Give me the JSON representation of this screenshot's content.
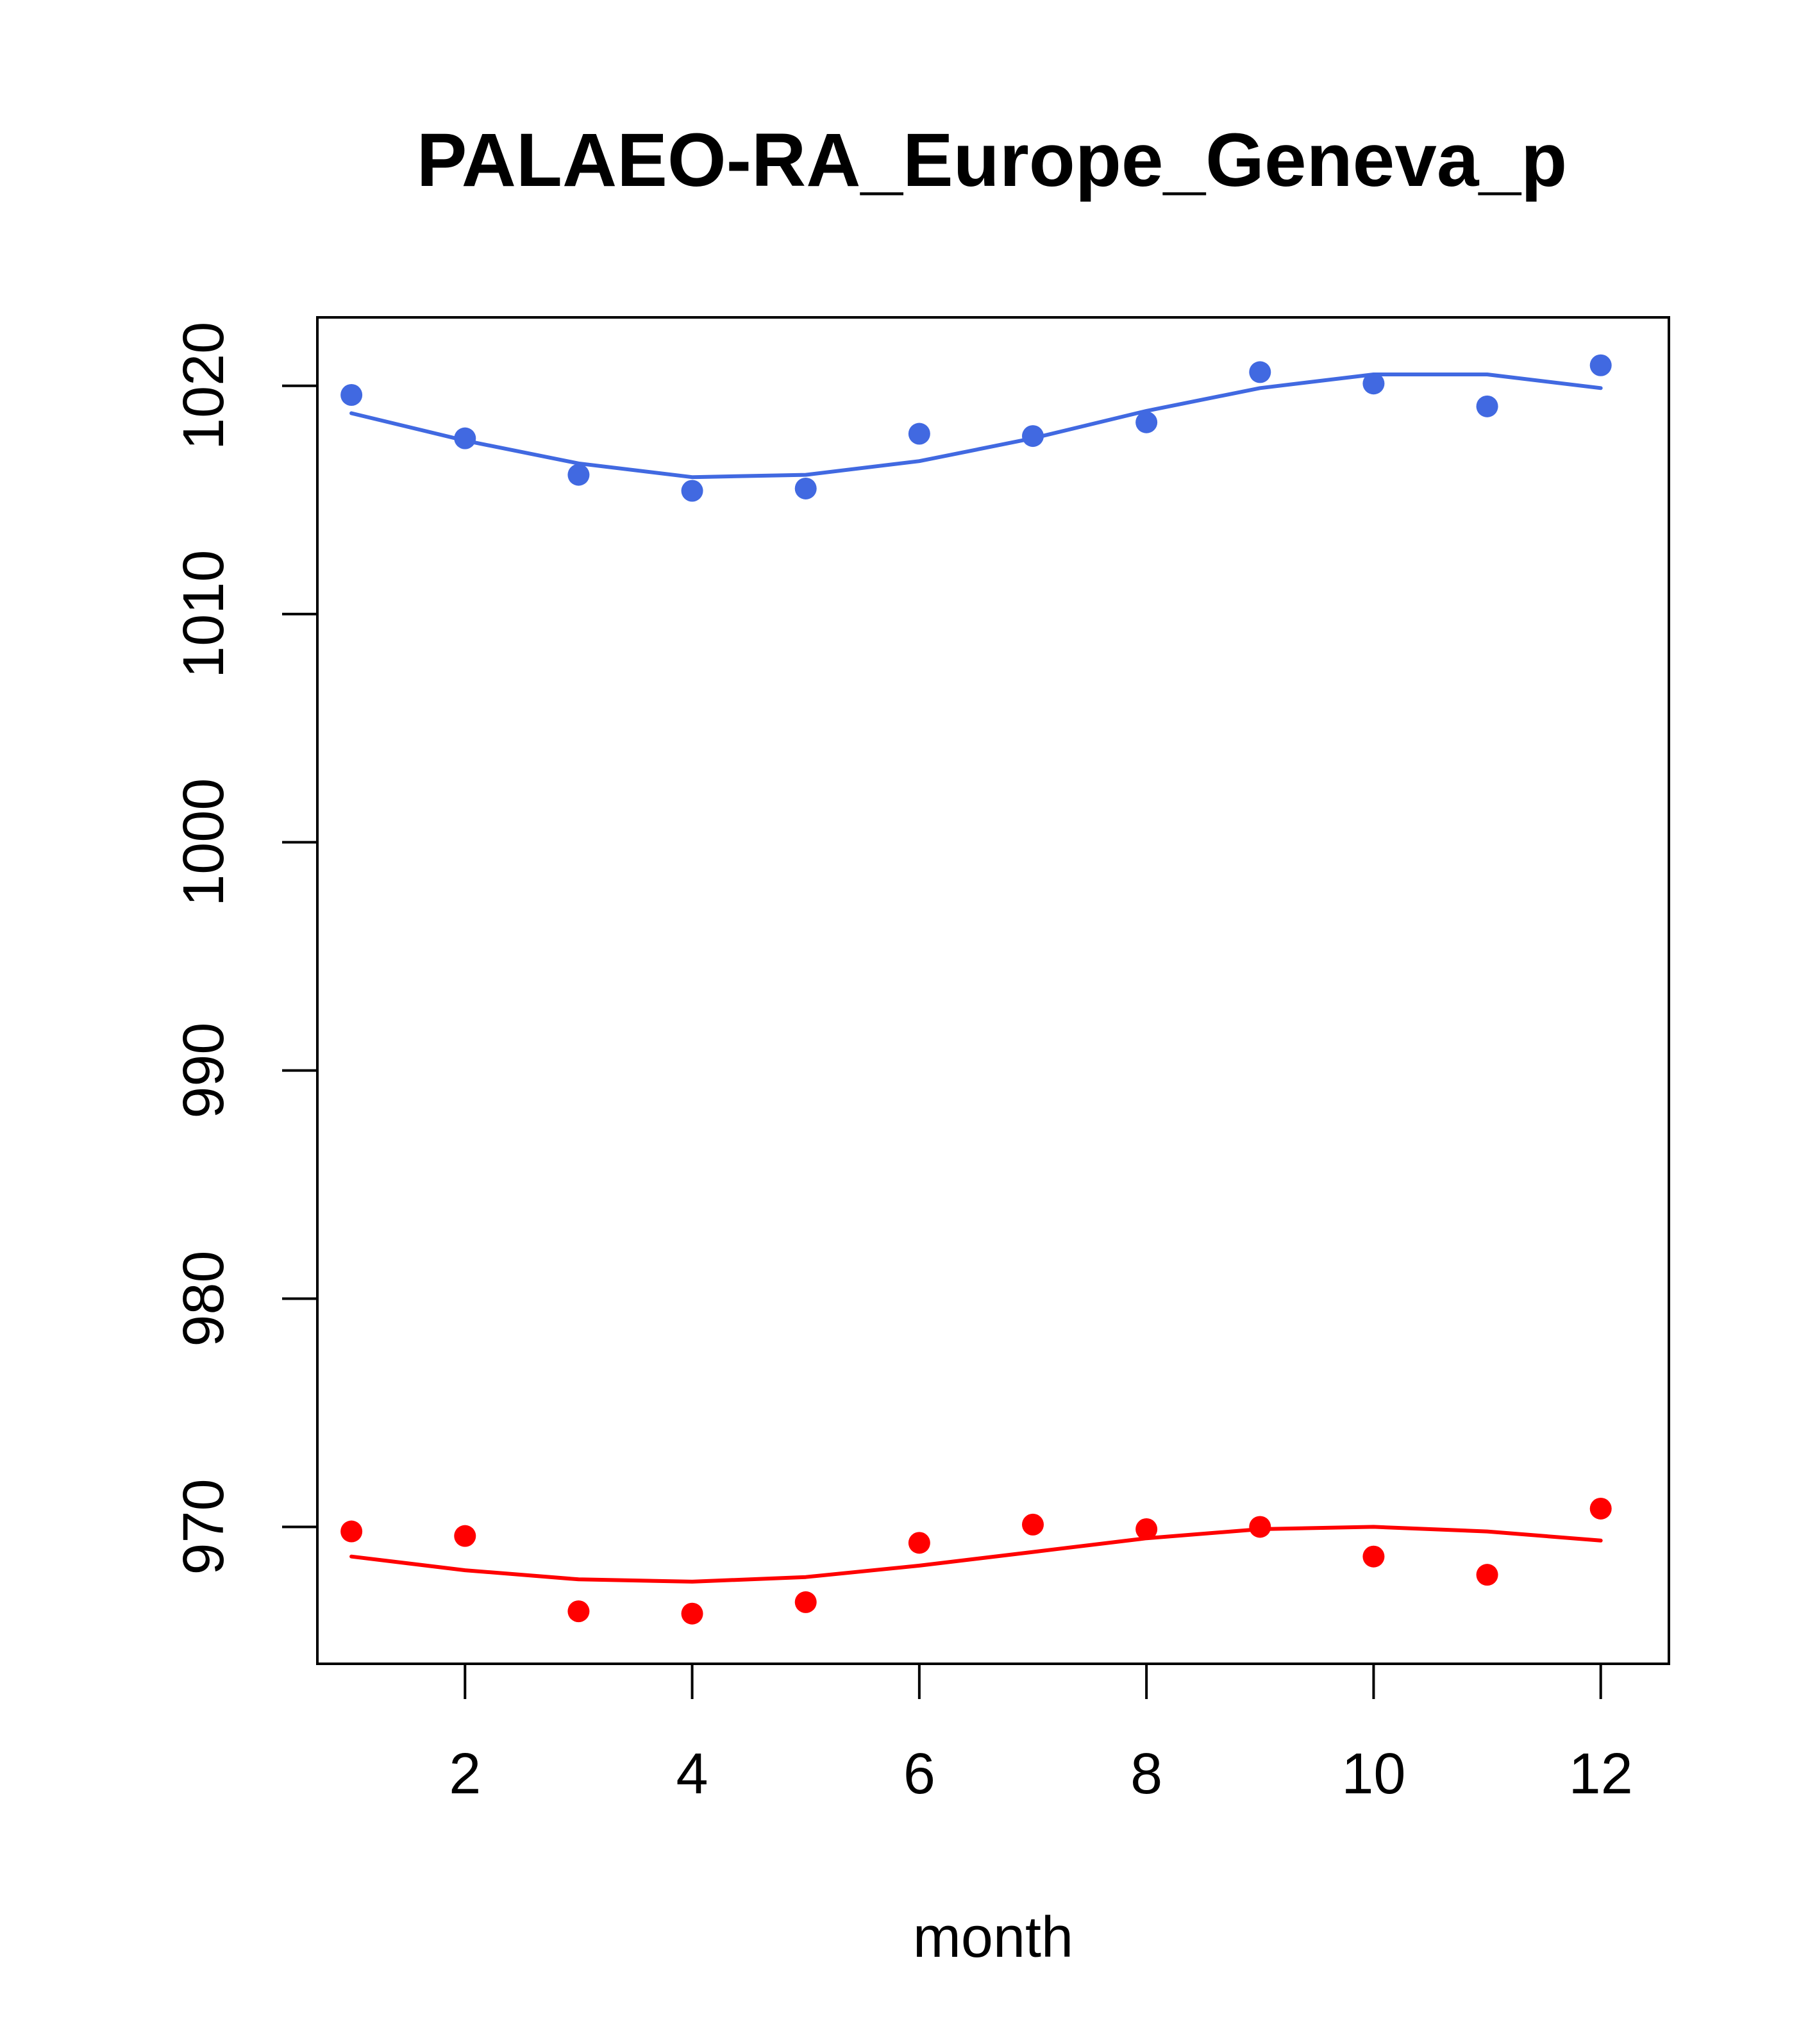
{
  "chart_data": {
    "type": "scatter",
    "title": "PALAEO-RA_Europe_Geneva_p",
    "xlabel": "month",
    "ylabel": "",
    "xlim": [
      0.7,
      12.6
    ],
    "ylim": [
      964,
      1023
    ],
    "x_ticks": [
      2,
      4,
      6,
      8,
      10,
      12
    ],
    "y_ticks": [
      970,
      980,
      990,
      1000,
      1010,
      1020
    ],
    "grid": false,
    "legend": "none",
    "x": [
      1,
      2,
      3,
      4,
      5,
      6,
      7,
      8,
      9,
      10,
      11,
      12
    ],
    "series": [
      {
        "color": "#4169E1",
        "points": [
          1019.6,
          1017.7,
          1016.1,
          1015.4,
          1015.5,
          1017.9,
          1017.8,
          1018.4,
          1020.6,
          1020.1,
          1019.1,
          1020.9
        ],
        "smooth": [
          1018.8,
          1017.6,
          1016.6,
          1016.0,
          1016.1,
          1016.7,
          1017.7,
          1018.9,
          1019.9,
          1020.5,
          1020.5,
          1019.9
        ]
      },
      {
        "color": "#FF0000",
        "points": [
          969.8,
          969.6,
          966.3,
          966.2,
          966.7,
          969.3,
          970.1,
          969.9,
          970.0,
          968.7,
          967.9,
          970.8
        ],
        "smooth": [
          968.7,
          968.1,
          967.7,
          967.6,
          967.8,
          968.3,
          968.9,
          969.5,
          969.9,
          970.0,
          969.8,
          969.4
        ]
      }
    ]
  }
}
